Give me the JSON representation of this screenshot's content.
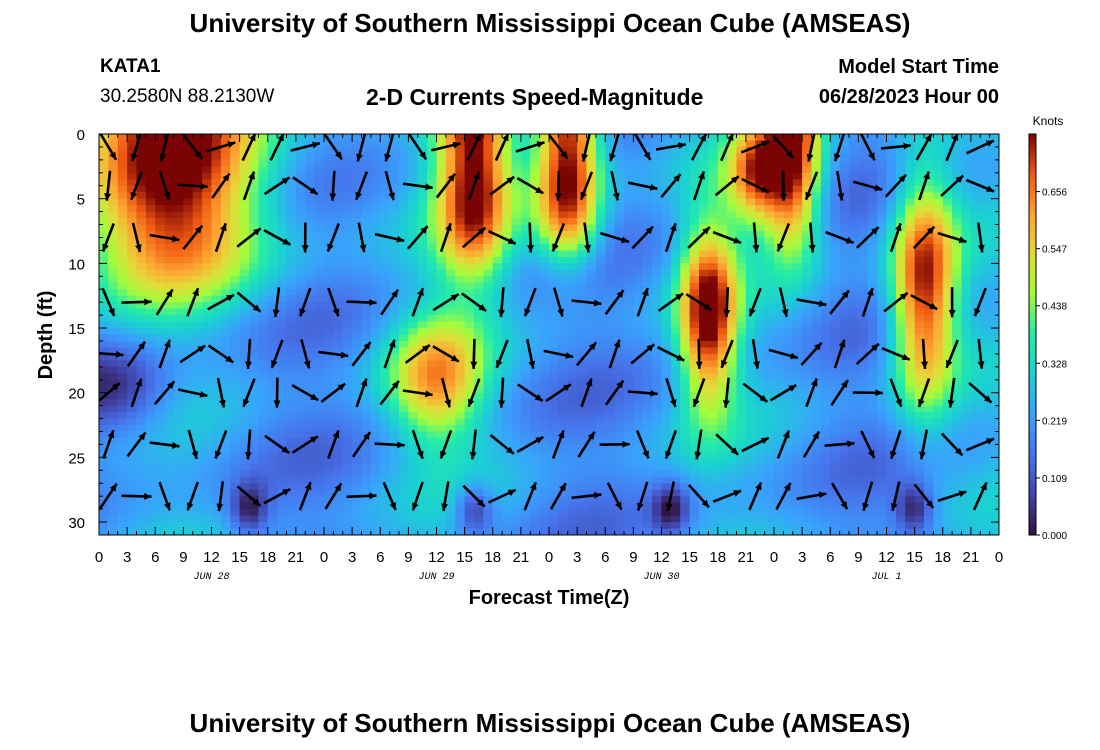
{
  "header": {
    "title": "University of Southern Mississippi Ocean Cube (AMSEAS)",
    "station": "KATA1",
    "coords": "30.2580N  88.2130W",
    "plot_title": "2-D Currents Speed-Magnitude",
    "model_label": "Model Start Time",
    "model_time": "06/28/2023 Hour 00"
  },
  "footer": {
    "title": "University of Southern Mississippi Ocean Cube (AMSEAS)"
  },
  "colors": {
    "low": "#2e0b4a",
    "high": "#7a0403"
  },
  "chart_data": {
    "type": "heatmap",
    "title": "2-D Currents Speed-Magnitude",
    "xlabel": "Forecast Time(Z)",
    "ylabel": "Depth (ft)",
    "x_range_hours": [
      0,
      96
    ],
    "ylim": [
      0,
      31
    ],
    "y_ticks": [
      0,
      5,
      10,
      15,
      20,
      25,
      30
    ],
    "x_tick_labels": [
      "0",
      "3",
      "6",
      "9",
      "12",
      "15",
      "18",
      "21",
      "0",
      "3",
      "6",
      "9",
      "12",
      "15",
      "18",
      "21",
      "0",
      "3",
      "6",
      "9",
      "12",
      "15",
      "18",
      "21",
      "0",
      "3",
      "6",
      "9",
      "12",
      "15",
      "18",
      "21",
      "0"
    ],
    "day_labels": [
      "JUN 28",
      "JUN 29",
      "JUN 30",
      "JUL 1"
    ],
    "colorbar": {
      "unit": "Knots",
      "ticks": [
        "0.000",
        "0.109",
        "0.219",
        "0.328",
        "0.438",
        "0.547",
        "0.656"
      ],
      "range": [
        0,
        0.766
      ]
    },
    "vector_depths_ft": [
      1,
      4,
      8,
      13,
      17,
      20,
      24,
      28
    ]
  }
}
